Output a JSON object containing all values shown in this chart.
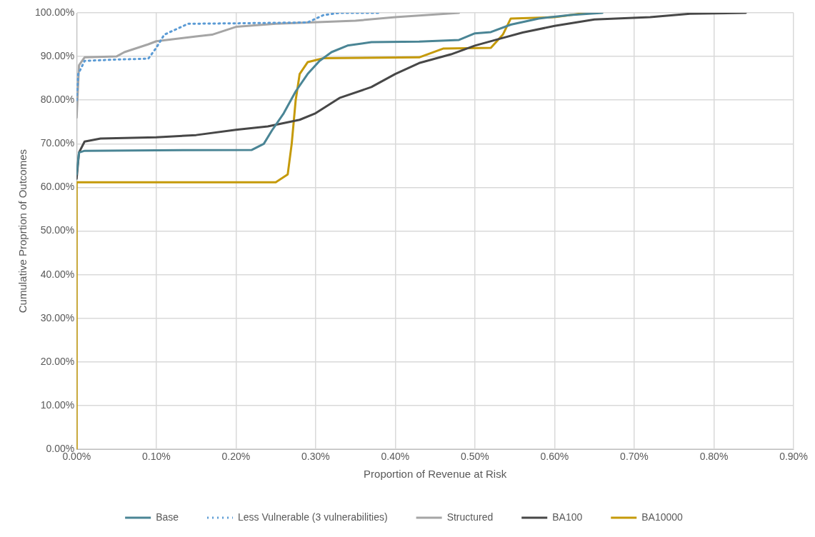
{
  "chart_data": {
    "type": "line",
    "xlabel": "Proportion of Revenue at Risk",
    "ylabel": "Cumulative Proprtion of Outcomes",
    "grid": true,
    "legend": "bottom",
    "marker": "none",
    "xlim": [
      0,
      0.9
    ],
    "xticks": [
      {
        "value": 0,
        "label": "0.00%"
      },
      {
        "value": 0.1,
        "label": "0.10%"
      },
      {
        "value": 0.2,
        "label": "0.20%"
      },
      {
        "value": 0.3,
        "label": "0.30%"
      },
      {
        "value": 0.4,
        "label": "0.40%"
      },
      {
        "value": 0.5,
        "label": "0.50%"
      },
      {
        "value": 0.6,
        "label": "0.60%"
      },
      {
        "value": 0.7,
        "label": "0.70%"
      },
      {
        "value": 0.8,
        "label": "0.80%"
      },
      {
        "value": 0.9,
        "label": "0.90%"
      }
    ],
    "ylim": [
      0,
      100
    ],
    "yticks": [
      {
        "value": 0,
        "label": "0.00%"
      },
      {
        "value": 10,
        "label": "10.00%"
      },
      {
        "value": 20,
        "label": "20.00%"
      },
      {
        "value": 30,
        "label": "30.00%"
      },
      {
        "value": 40,
        "label": "40.00%"
      },
      {
        "value": 50,
        "label": "50.00%"
      },
      {
        "value": 60,
        "label": "60.00%"
      },
      {
        "value": 70,
        "label": "70.00%"
      },
      {
        "value": 80,
        "label": "80.00%"
      },
      {
        "value": 90,
        "label": "90.00%"
      },
      {
        "value": 100,
        "label": "100.00%"
      }
    ],
    "series": [
      {
        "name": "Base",
        "color": "#4a8595",
        "line_style": "solid",
        "x": [
          0,
          0.003,
          0.01,
          0.1,
          0.22,
          0.235,
          0.245,
          0.26,
          0.275,
          0.29,
          0.305,
          0.32,
          0.34,
          0.37,
          0.43,
          0.48,
          0.5,
          0.52,
          0.545,
          0.58,
          0.62,
          0.66
        ],
        "values": [
          63,
          68,
          68.4,
          68.5,
          68.6,
          70,
          73,
          77,
          82,
          86,
          89,
          91,
          92.5,
          93.3,
          93.4,
          93.8,
          95.3,
          95.6,
          97.3,
          98.7,
          99.5,
          100
        ]
      },
      {
        "name": "Less Vulnerable (3 vulnerabilities)",
        "color": "#5b9bd5",
        "line_style": "dotted",
        "x": [
          0,
          0.002,
          0.01,
          0.05,
          0.09,
          0.1,
          0.11,
          0.14,
          0.2,
          0.29,
          0.31,
          0.33,
          0.38
        ],
        "values": [
          80,
          86,
          89,
          89.3,
          89.5,
          92,
          95,
          97.5,
          97.6,
          97.8,
          99.5,
          100,
          100
        ]
      },
      {
        "name": "Structured",
        "color": "#a5a5a5",
        "line_style": "solid",
        "x": [
          0,
          0.003,
          0.01,
          0.05,
          0.06,
          0.09,
          0.1,
          0.15,
          0.17,
          0.2,
          0.25,
          0.35,
          0.4,
          0.48
        ],
        "values": [
          76,
          88,
          89.8,
          90,
          91,
          92.8,
          93.5,
          94.6,
          95,
          96.8,
          97.5,
          98.2,
          99,
          100
        ]
      },
      {
        "name": "BA100",
        "color": "#474747",
        "line_style": "solid",
        "x": [
          0,
          0.003,
          0.01,
          0.03,
          0.1,
          0.15,
          0.2,
          0.24,
          0.28,
          0.3,
          0.33,
          0.37,
          0.4,
          0.43,
          0.47,
          0.5,
          0.53,
          0.56,
          0.6,
          0.65,
          0.72,
          0.77,
          0.84
        ],
        "values": [
          62,
          68,
          70.5,
          71.2,
          71.5,
          72,
          73.2,
          74,
          75.5,
          77,
          80.5,
          83,
          86,
          88.5,
          90.5,
          92.5,
          94,
          95.5,
          97,
          98.5,
          99,
          99.8,
          100
        ]
      },
      {
        "name": "BA10000",
        "color": "#c59a0a",
        "line_style": "solid",
        "x": [
          0,
          0,
          0.25,
          0.265,
          0.27,
          0.275,
          0.28,
          0.29,
          0.31,
          0.43,
          0.46,
          0.52,
          0.535,
          0.545,
          0.6,
          0.64
        ],
        "values": [
          0,
          61.2,
          61.2,
          63,
          70,
          80,
          86,
          88.7,
          89.6,
          89.8,
          91.8,
          92,
          95,
          98.7,
          99,
          100
        ]
      }
    ]
  }
}
